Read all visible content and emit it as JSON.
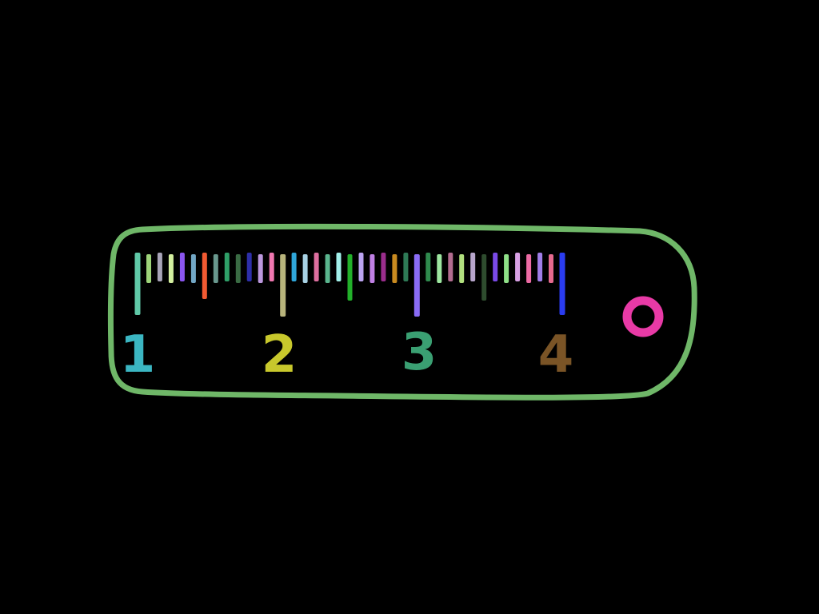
{
  "ruler": {
    "outline_color": "#6fb768",
    "background": "#000000",
    "hole_color": "#e83aa6",
    "ticks": [
      {
        "color": "#60c9a8",
        "type": "major"
      },
      {
        "color": "#9ed47a",
        "type": "minor"
      },
      {
        "color": "#a8a4b8",
        "type": "minor"
      },
      {
        "color": "#d4f0a0",
        "type": "minor"
      },
      {
        "color": "#8a55ef",
        "type": "minor"
      },
      {
        "color": "#72a7c5",
        "type": "minor"
      },
      {
        "color": "#f25a32",
        "type": "half"
      },
      {
        "color": "#69988e",
        "type": "minor"
      },
      {
        "color": "#2f9f68",
        "type": "minor"
      },
      {
        "color": "#3a6b44",
        "type": "minor"
      },
      {
        "color": "#2d2fa8",
        "type": "minor"
      },
      {
        "color": "#bc98de",
        "type": "minor"
      },
      {
        "color": "#f077b0",
        "type": "minor"
      },
      {
        "color": "#b8b47c",
        "type": "major"
      },
      {
        "color": "#2fa6da",
        "type": "minor"
      },
      {
        "color": "#a8d2e4",
        "type": "minor"
      },
      {
        "color": "#dd6f9f",
        "type": "minor"
      },
      {
        "color": "#5ab58e",
        "type": "minor"
      },
      {
        "color": "#a2f0ea",
        "type": "minor"
      },
      {
        "color": "#22b02a",
        "type": "half"
      },
      {
        "color": "#bca4f2",
        "type": "minor"
      },
      {
        "color": "#c080e4",
        "type": "minor"
      },
      {
        "color": "#9a2d8c",
        "type": "minor"
      },
      {
        "color": "#c88a20",
        "type": "minor"
      },
      {
        "color": "#2e7a56",
        "type": "minor"
      },
      {
        "color": "#8a6cf6",
        "type": "major"
      },
      {
        "color": "#2f8a4e",
        "type": "minor"
      },
      {
        "color": "#9de7a0",
        "type": "minor"
      },
      {
        "color": "#b26c8f",
        "type": "minor"
      },
      {
        "color": "#b1e07e",
        "type": "minor"
      },
      {
        "color": "#b8a6cc",
        "type": "minor"
      },
      {
        "color": "#2e4c2e",
        "type": "half"
      },
      {
        "color": "#7a4ae8",
        "type": "minor"
      },
      {
        "color": "#8fe088",
        "type": "minor"
      },
      {
        "color": "#d8a0e4",
        "type": "minor"
      },
      {
        "color": "#ec6ba4",
        "type": "minor"
      },
      {
        "color": "#a07ee8",
        "type": "minor"
      },
      {
        "color": "#e66a8f",
        "type": "minor"
      },
      {
        "color": "#2a3cf0",
        "type": "major"
      }
    ],
    "labels": [
      {
        "text": "1",
        "color": "#3bb6c2"
      },
      {
        "text": "2",
        "color": "#c8c82c"
      },
      {
        "text": "3",
        "color": "#3a9f72"
      },
      {
        "text": "4",
        "color": "#7a5426"
      }
    ]
  }
}
